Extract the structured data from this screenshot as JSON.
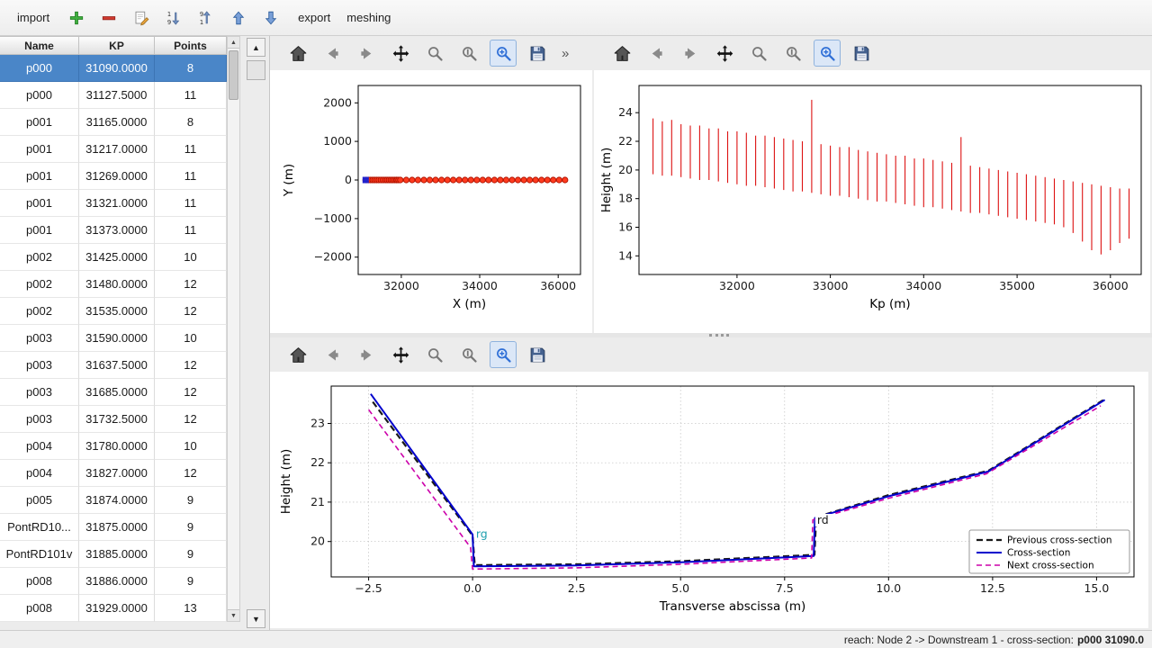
{
  "app": {
    "toolbar": {
      "import_label": "import",
      "export_label": "export",
      "meshing_label": "meshing",
      "icons": [
        {
          "name": "add",
          "color": "#3fae3f"
        },
        {
          "name": "remove",
          "color": "#d03a2f"
        },
        {
          "name": "edit",
          "color": "#e8a33d"
        },
        {
          "name": "sort-ascending",
          "color": "#6f8fc0"
        },
        {
          "name": "sort-descending",
          "color": "#6f8fc0"
        },
        {
          "name": "move-up",
          "color": "#7aa0d8"
        },
        {
          "name": "move-down",
          "color": "#7aa0d8"
        }
      ]
    },
    "status": {
      "prefix": "reach: Node 2 -> Downstream 1 - cross-section:",
      "selection": "p000 31090.0"
    },
    "colors": {
      "selection_blue": "#4a86c8",
      "plot_red": "#dd1111",
      "plot_blue": "#0000cc",
      "plot_magenta": "#cc00aa"
    }
  },
  "table": {
    "columns": [
      "Name",
      "KP",
      "Points"
    ],
    "selected_index": 0,
    "rows": [
      {
        "name": "p000",
        "kp": "31090.0000",
        "points": "8"
      },
      {
        "name": "p000",
        "kp": "31127.5000",
        "points": "11"
      },
      {
        "name": "p001",
        "kp": "31165.0000",
        "points": "8"
      },
      {
        "name": "p001",
        "kp": "31217.0000",
        "points": "11"
      },
      {
        "name": "p001",
        "kp": "31269.0000",
        "points": "11"
      },
      {
        "name": "p001",
        "kp": "31321.0000",
        "points": "11"
      },
      {
        "name": "p001",
        "kp": "31373.0000",
        "points": "11"
      },
      {
        "name": "p002",
        "kp": "31425.0000",
        "points": "10"
      },
      {
        "name": "p002",
        "kp": "31480.0000",
        "points": "12"
      },
      {
        "name": "p002",
        "kp": "31535.0000",
        "points": "12"
      },
      {
        "name": "p003",
        "kp": "31590.0000",
        "points": "10"
      },
      {
        "name": "p003",
        "kp": "31637.5000",
        "points": "12"
      },
      {
        "name": "p003",
        "kp": "31685.0000",
        "points": "12"
      },
      {
        "name": "p003",
        "kp": "31732.5000",
        "points": "12"
      },
      {
        "name": "p004",
        "kp": "31780.0000",
        "points": "10"
      },
      {
        "name": "p004",
        "kp": "31827.0000",
        "points": "12"
      },
      {
        "name": "p005",
        "kp": "31874.0000",
        "points": "9"
      },
      {
        "name": "PontRD10...",
        "kp": "31875.0000",
        "points": "9"
      },
      {
        "name": "PontRD101v",
        "kp": "31885.0000",
        "points": "9"
      },
      {
        "name": "p008",
        "kp": "31886.0000",
        "points": "9"
      },
      {
        "name": "p008",
        "kp": "31929.0000",
        "points": "13"
      }
    ]
  },
  "mpl_toolbar": {
    "overflow": "»",
    "buttons": [
      {
        "name": "home"
      },
      {
        "name": "back"
      },
      {
        "name": "forward"
      },
      {
        "name": "pan"
      },
      {
        "name": "zoom"
      },
      {
        "name": "zoom-alt"
      },
      {
        "name": "zoom-rect",
        "active": true
      },
      {
        "name": "save"
      }
    ]
  },
  "chart_data": [
    {
      "id": "plan",
      "type": "scatter",
      "xlabel": "X (m)",
      "ylabel": "Y (m)",
      "xlim": [
        30900,
        36570
      ],
      "ylim": [
        -2450,
        2450
      ],
      "xticks": [
        32000,
        34000,
        36000
      ],
      "xtick_labels": [
        "32000",
        "34000",
        "36000"
      ],
      "yticks": [
        -2000,
        -1000,
        0,
        1000,
        2000
      ],
      "ytick_labels": [
        "−2000",
        "−1000",
        "0",
        "1000",
        "2000"
      ],
      "layout": {
        "margins": {
          "l": 98,
          "r": 13,
          "t": 17,
          "b": 65
        },
        "ylabel_x": 25,
        "grid": false,
        "legend": false
      },
      "series": [
        {
          "name": "cross-section positions",
          "type": "scatter",
          "marker": "circle",
          "color": "#ff3b1f",
          "edge": "#b31400",
          "y_const": 0,
          "x": [
            31090,
            31127.5,
            31165,
            31217,
            31269,
            31321,
            31373,
            31425,
            31480,
            31535,
            31590,
            31637.5,
            31685,
            31732.5,
            31780,
            31827,
            31874,
            31885,
            31929,
            31975,
            32125,
            32275,
            32425,
            32575,
            32725,
            32875,
            33025,
            33175,
            33325,
            33475,
            33625,
            33775,
            33925,
            34075,
            34225,
            34375,
            34525,
            34675,
            34825,
            34975,
            35125,
            35275,
            35425,
            35575,
            35725,
            35875,
            36025,
            36175
          ]
        },
        {
          "name": "selected cross-section",
          "type": "scatter",
          "marker": "square",
          "color": "#2222cc",
          "x": [
            31090
          ],
          "y": [
            0
          ]
        }
      ]
    },
    {
      "id": "long-profile",
      "type": "vlines",
      "xlabel": "Kp (m)",
      "ylabel": "Height (m)",
      "xlim": [
        30950,
        36330
      ],
      "ylim": [
        12.7,
        25.9
      ],
      "xticks": [
        32000,
        33000,
        34000,
        35000,
        36000
      ],
      "xtick_labels": [
        "32000",
        "33000",
        "34000",
        "35000",
        "36000"
      ],
      "yticks": [
        14,
        16,
        18,
        20,
        22,
        24
      ],
      "ytick_labels": [
        "14",
        "16",
        "18",
        "20",
        "22",
        "24"
      ],
      "layout": {
        "margins": {
          "l": 50,
          "r": 10,
          "t": 17,
          "b": 65
        },
        "ylabel_x": 18,
        "grid": false,
        "legend": false
      },
      "series": [
        {
          "name": "cross-section height extents",
          "type": "vlines",
          "color": "#dd1111",
          "x": [
            31100,
            31200,
            31300,
            31400,
            31500,
            31600,
            31700,
            31800,
            31900,
            32000,
            32100,
            32200,
            32300,
            32400,
            32500,
            32600,
            32700,
            32800,
            32900,
            33000,
            33100,
            33200,
            33300,
            33400,
            33500,
            33600,
            33700,
            33800,
            33900,
            34000,
            34100,
            34200,
            34300,
            34400,
            34500,
            34600,
            34700,
            34800,
            34900,
            35000,
            35100,
            35200,
            35300,
            35400,
            35500,
            35600,
            35700,
            35800,
            35900,
            36000,
            36100,
            36200
          ],
          "ymin": [
            19.7,
            19.6,
            19.6,
            19.5,
            19.4,
            19.3,
            19.3,
            19.2,
            19.1,
            19.0,
            18.9,
            18.9,
            18.8,
            18.7,
            18.6,
            18.5,
            18.5,
            18.4,
            18.3,
            18.2,
            18.2,
            18.1,
            18.0,
            17.9,
            17.8,
            17.8,
            17.7,
            17.6,
            17.5,
            17.4,
            17.4,
            17.3,
            17.2,
            17.1,
            17.0,
            17.0,
            16.9,
            16.8,
            16.7,
            16.6,
            16.5,
            16.4,
            16.3,
            16.2,
            16.0,
            15.6,
            15.0,
            14.4,
            14.1,
            14.4,
            14.9,
            15.2
          ],
          "ymax": [
            23.6,
            23.4,
            23.5,
            23.2,
            23.1,
            23.1,
            22.9,
            22.9,
            22.7,
            22.7,
            22.6,
            22.4,
            22.4,
            22.3,
            22.2,
            22.1,
            22.0,
            24.9,
            21.8,
            21.7,
            21.6,
            21.6,
            21.4,
            21.3,
            21.2,
            21.1,
            21.0,
            21.0,
            20.8,
            20.8,
            20.7,
            20.6,
            20.5,
            22.3,
            20.3,
            20.2,
            20.1,
            20.0,
            19.9,
            19.8,
            19.7,
            19.6,
            19.5,
            19.4,
            19.3,
            19.2,
            19.1,
            19.0,
            18.9,
            18.8,
            18.7,
            18.7
          ]
        }
      ]
    },
    {
      "id": "cross-section",
      "type": "line",
      "xlabel": "Transverse abscissa (m)",
      "ylabel": "Height (m)",
      "xlim": [
        -3.4,
        15.9
      ],
      "ylim": [
        19.1,
        23.95
      ],
      "xticks": [
        -2.5,
        0,
        2.5,
        5,
        7.5,
        10,
        12.5,
        15
      ],
      "xtick_labels": [
        "−2.5",
        "0.0",
        "2.5",
        "5.0",
        "7.5",
        "10.0",
        "12.5",
        "15.0"
      ],
      "yticks": [
        20,
        21,
        22,
        23
      ],
      "ytick_labels": [
        "20",
        "21",
        "22",
        "23"
      ],
      "layout": {
        "margins": {
          "l": 68,
          "r": 16,
          "t": 16,
          "b": 57
        },
        "ylabel_x": 22,
        "grid": true,
        "legend": true
      },
      "series": [
        {
          "name": "Previous cross-section",
          "type": "line",
          "color": "#1a1a1a",
          "dash": "7,4",
          "width": 2.2,
          "x": [
            -2.4,
            0,
            0.05,
            2.5,
            5,
            8.22,
            8.26,
            10,
            12.4,
            15.2
          ],
          "y": [
            23.55,
            20.15,
            19.4,
            19.42,
            19.5,
            19.66,
            20.62,
            21.18,
            21.8,
            23.62
          ]
        },
        {
          "name": "Cross-section",
          "type": "line",
          "color": "#0000cc",
          "dash": null,
          "width": 2,
          "x": [
            -2.45,
            0,
            0.03,
            2.5,
            5,
            8.2,
            8.23,
            10,
            12.4,
            15.2
          ],
          "y": [
            23.75,
            20.18,
            19.37,
            19.39,
            19.47,
            19.63,
            20.6,
            21.15,
            21.78,
            23.6
          ]
        },
        {
          "name": "Next cross-section",
          "type": "line",
          "color": "#cc00aa",
          "dash": "6,4",
          "width": 1.6,
          "x": [
            -2.5,
            -0.05,
            0,
            2.5,
            5,
            8.15,
            8.18,
            10,
            12.35,
            15.1
          ],
          "y": [
            23.35,
            19.85,
            19.3,
            19.33,
            19.42,
            19.58,
            20.55,
            21.1,
            21.72,
            23.45
          ]
        }
      ],
      "annotations": [
        {
          "text": "rg",
          "x": 0.08,
          "y": 20.1,
          "color": "#1d9fae",
          "bg": null
        },
        {
          "text": "rd",
          "x": 8.28,
          "y": 20.45,
          "color": "#1a1a1a",
          "bg": "#ffffff"
        }
      ]
    }
  ]
}
